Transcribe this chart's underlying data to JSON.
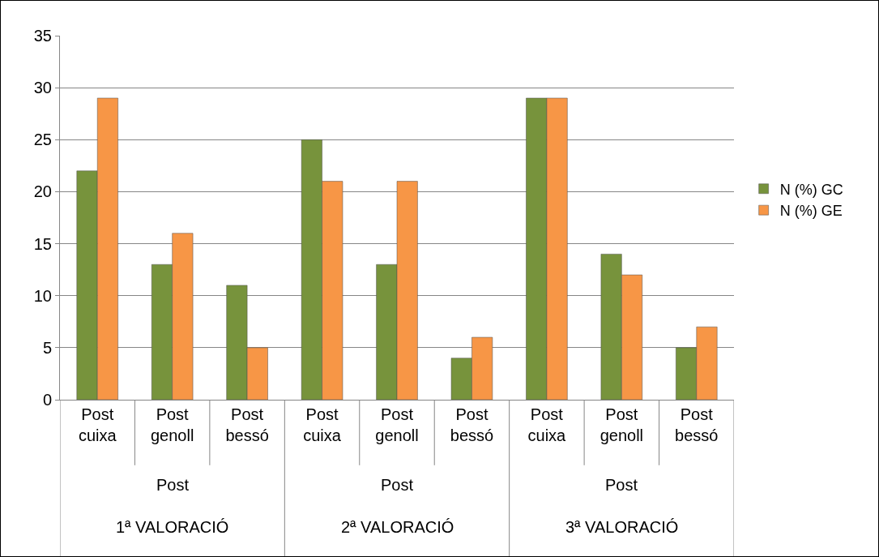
{
  "chart_data": {
    "type": "bar",
    "categories": [
      "Post cuixa",
      "Post genoll",
      "Post bessó",
      "Post cuixa",
      "Post genoll",
      "Post bessó",
      "Post cuixa",
      "Post genoll",
      "Post bessó"
    ],
    "series": [
      {
        "name": "N (%) GC",
        "color": "#77933c",
        "values": [
          22,
          13,
          11,
          25,
          13,
          4,
          29,
          14,
          5
        ]
      },
      {
        "name": "N (%) GE",
        "color": "#f79646",
        "values": [
          29,
          16,
          5,
          21,
          21,
          6,
          29,
          12,
          7
        ]
      }
    ],
    "annotations": [
      "Post",
      "1ª VALORACIÓ",
      "Post",
      "2ª VALORACIÓ",
      "Post",
      "3ª VALORACIÓ"
    ],
    "ylim": [
      0,
      35
    ],
    "yticks": [
      0,
      5,
      10,
      15,
      20,
      25,
      30,
      35
    ],
    "grid": "y",
    "legend": "right"
  }
}
